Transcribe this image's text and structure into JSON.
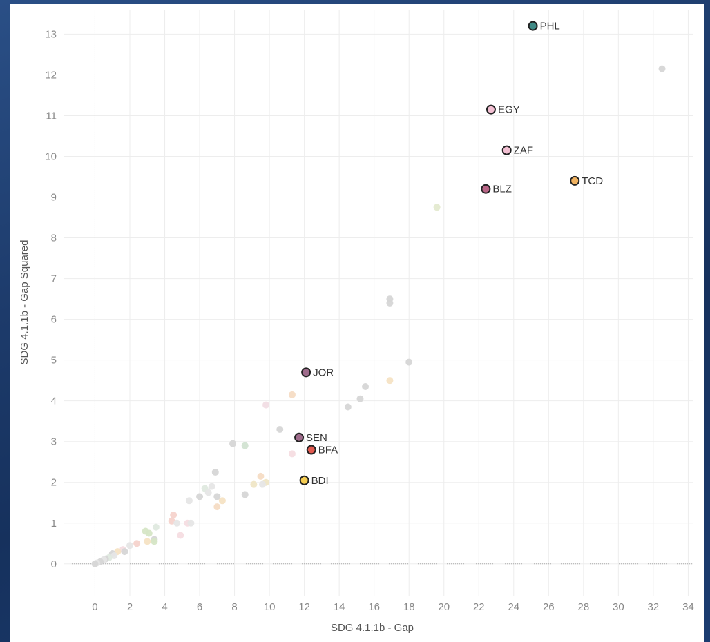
{
  "chart_data": {
    "type": "scatter",
    "title": "",
    "xlabel": "SDG 4.1.1b - Gap",
    "ylabel": "SDG 4.1.1b - Gap Squared",
    "xlim": [
      -1.8,
      34.3
    ],
    "ylim": [
      -0.8,
      13.6
    ],
    "xticks": [
      0,
      2,
      4,
      6,
      8,
      10,
      12,
      14,
      16,
      18,
      20,
      22,
      24,
      26,
      28,
      30,
      32,
      34
    ],
    "yticks": [
      0,
      1,
      2,
      3,
      4,
      5,
      6,
      7,
      8,
      9,
      10,
      11,
      12,
      13
    ],
    "grid": true,
    "highlighted": [
      {
        "label": "PHL",
        "x": 25.1,
        "y": 13.2,
        "color": "#3f8a86"
      },
      {
        "label": "EGY",
        "x": 22.7,
        "y": 11.15,
        "color": "#f2bfd2"
      },
      {
        "label": "ZAF",
        "x": 23.6,
        "y": 10.15,
        "color": "#f2bfd2"
      },
      {
        "label": "TCD",
        "x": 27.5,
        "y": 9.4,
        "color": "#f0b260"
      },
      {
        "label": "BLZ",
        "x": 22.4,
        "y": 9.2,
        "color": "#b86586"
      },
      {
        "label": "JOR",
        "x": 12.1,
        "y": 4.7,
        "color": "#9e6b8b"
      },
      {
        "label": "SEN",
        "x": 11.7,
        "y": 3.1,
        "color": "#9e6b8b"
      },
      {
        "label": "BFA",
        "x": 12.4,
        "y": 2.8,
        "color": "#e25a50"
      },
      {
        "label": "BDI",
        "x": 12.0,
        "y": 2.05,
        "color": "#f5cd52"
      }
    ],
    "faded": [
      {
        "x": 32.5,
        "y": 12.15,
        "color": "#d6d6d6"
      },
      {
        "x": 19.6,
        "y": 8.75,
        "color": "#e4ead0"
      },
      {
        "x": 16.9,
        "y": 6.5,
        "color": "#d6d6d6"
      },
      {
        "x": 16.9,
        "y": 6.4,
        "color": "#d6d6d6"
      },
      {
        "x": 18.0,
        "y": 4.95,
        "color": "#d6d6d6"
      },
      {
        "x": 16.9,
        "y": 4.5,
        "color": "#f6e3c4"
      },
      {
        "x": 15.5,
        "y": 4.35,
        "color": "#d6d6d6"
      },
      {
        "x": 11.3,
        "y": 4.15,
        "color": "#f6dcc4"
      },
      {
        "x": 15.2,
        "y": 4.05,
        "color": "#d6d6d6"
      },
      {
        "x": 9.8,
        "y": 3.9,
        "color": "#f1dde4"
      },
      {
        "x": 14.5,
        "y": 3.85,
        "color": "#d6d6d6"
      },
      {
        "x": 10.6,
        "y": 3.3,
        "color": "#d6d6d6"
      },
      {
        "x": 7.9,
        "y": 2.95,
        "color": "#d6d6d6"
      },
      {
        "x": 8.6,
        "y": 2.9,
        "color": "#d2e3d2"
      },
      {
        "x": 11.3,
        "y": 2.7,
        "color": "#f6dde2"
      },
      {
        "x": 6.9,
        "y": 2.25,
        "color": "#d6d6d6"
      },
      {
        "x": 9.5,
        "y": 2.15,
        "color": "#f6dcc4"
      },
      {
        "x": 9.8,
        "y": 2.0,
        "color": "#efe6c6"
      },
      {
        "x": 9.6,
        "y": 1.95,
        "color": "#e6e6e6"
      },
      {
        "x": 9.1,
        "y": 1.95,
        "color": "#efe6c6"
      },
      {
        "x": 6.3,
        "y": 1.85,
        "color": "#dfe9df"
      },
      {
        "x": 6.7,
        "y": 1.9,
        "color": "#e6e6e6"
      },
      {
        "x": 6.5,
        "y": 1.75,
        "color": "#e6e6e6"
      },
      {
        "x": 8.6,
        "y": 1.7,
        "color": "#d6d6d6"
      },
      {
        "x": 7.0,
        "y": 1.65,
        "color": "#d6d6d6"
      },
      {
        "x": 6.0,
        "y": 1.65,
        "color": "#d6d6d6"
      },
      {
        "x": 7.3,
        "y": 1.55,
        "color": "#f6e3c4"
      },
      {
        "x": 5.4,
        "y": 1.55,
        "color": "#e6e6e6"
      },
      {
        "x": 7.0,
        "y": 1.4,
        "color": "#f6dcc4"
      },
      {
        "x": 4.5,
        "y": 1.2,
        "color": "#f6d3cc"
      },
      {
        "x": 4.4,
        "y": 1.05,
        "color": "#f6d3cc"
      },
      {
        "x": 4.7,
        "y": 1.0,
        "color": "#e6e6e6"
      },
      {
        "x": 5.3,
        "y": 1.0,
        "color": "#f6dde2"
      },
      {
        "x": 5.5,
        "y": 1.0,
        "color": "#e6e6e6"
      },
      {
        "x": 3.5,
        "y": 0.9,
        "color": "#dfe9df"
      },
      {
        "x": 2.9,
        "y": 0.8,
        "color": "#d6e6c6"
      },
      {
        "x": 3.1,
        "y": 0.75,
        "color": "#d6e6c6"
      },
      {
        "x": 4.9,
        "y": 0.7,
        "color": "#f6dde2"
      },
      {
        "x": 3.4,
        "y": 0.6,
        "color": "#d6d6d6"
      },
      {
        "x": 3.0,
        "y": 0.55,
        "color": "#f6e3c4"
      },
      {
        "x": 3.4,
        "y": 0.55,
        "color": "#d6e6c6"
      },
      {
        "x": 2.4,
        "y": 0.5,
        "color": "#f6d3cc"
      },
      {
        "x": 2.0,
        "y": 0.45,
        "color": "#e6e6e6"
      },
      {
        "x": 1.6,
        "y": 0.35,
        "color": "#f6dde2"
      },
      {
        "x": 1.7,
        "y": 0.3,
        "color": "#d6d6d6"
      },
      {
        "x": 1.3,
        "y": 0.3,
        "color": "#f6e3c4"
      },
      {
        "x": 1.0,
        "y": 0.25,
        "color": "#d6d6d6"
      },
      {
        "x": 1.1,
        "y": 0.2,
        "color": "#e6e6e6"
      },
      {
        "x": 0.8,
        "y": 0.15,
        "color": "#dfe9df"
      },
      {
        "x": 0.6,
        "y": 0.12,
        "color": "#d6d6d6"
      },
      {
        "x": 0.5,
        "y": 0.1,
        "color": "#e6e6e6"
      },
      {
        "x": 0.3,
        "y": 0.05,
        "color": "#d6d6d6"
      },
      {
        "x": 0.1,
        "y": 0.02,
        "color": "#e6e6e6"
      },
      {
        "x": 0.0,
        "y": 0.0,
        "color": "#d6d6d6"
      }
    ]
  }
}
